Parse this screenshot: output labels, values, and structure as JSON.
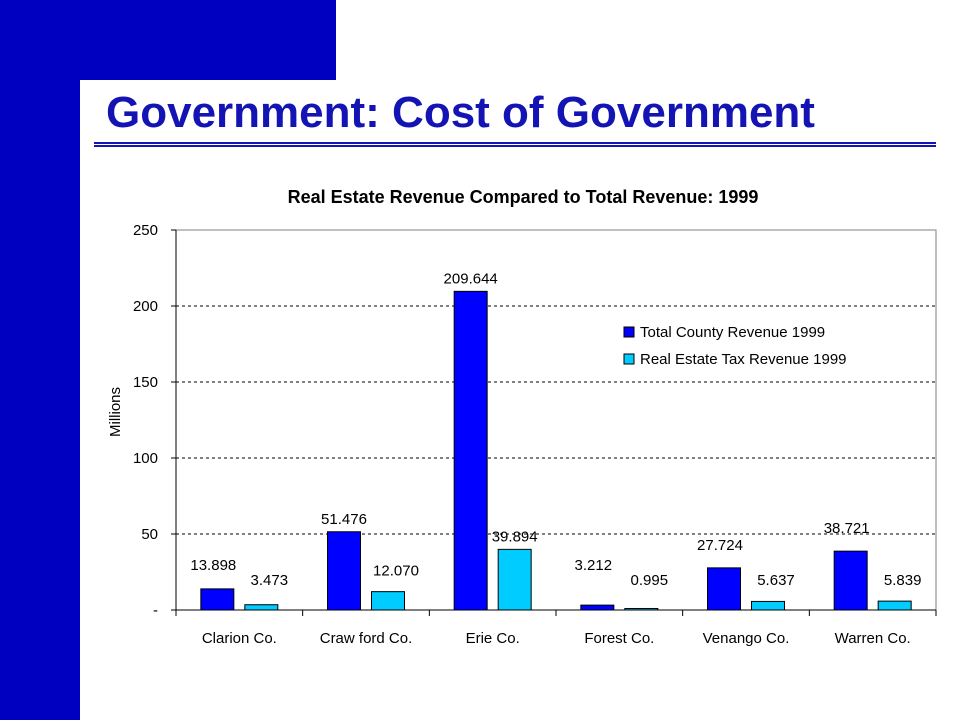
{
  "slide": {
    "title": "Government:  Cost of Government"
  },
  "colors": {
    "frame": "#0000c0",
    "title_text": "#1414b4",
    "total_series": "#0000ff",
    "real_estate_series": "#00ccff"
  },
  "chart_data": {
    "type": "bar",
    "title": "Real Estate Revenue Compared to Total Revenue: 1999",
    "xlabel": "",
    "ylabel": "Millions",
    "ylim": [
      0,
      250
    ],
    "yticks": [
      0,
      50,
      100,
      150,
      200,
      250
    ],
    "ytick_labels": [
      "-",
      "50",
      "100",
      "150",
      "200",
      "250"
    ],
    "grid": "horizontal dotted",
    "legend_position": "top-right",
    "categories": [
      "Clarion Co.",
      "Craw ford Co.",
      "Erie Co.",
      "Forest Co.",
      "Venango Co.",
      "Warren Co."
    ],
    "series": [
      {
        "name": "Total County Revenue 1999",
        "color": "#0000ff",
        "values": [
          13.898,
          51.476,
          209.644,
          3.212,
          27.724,
          38.721
        ],
        "labels": [
          "13.898",
          "51.476",
          "209.644",
          "3.212",
          "27.724",
          "38.721"
        ]
      },
      {
        "name": "Real Estate Tax Revenue 1999",
        "color": "#00ccff",
        "values": [
          3.473,
          12.07,
          39.894,
          0.995,
          5.637,
          5.839
        ],
        "labels": [
          "3.473",
          "12.070",
          "39.894",
          "0.995",
          "5.637",
          "5.839"
        ]
      }
    ]
  }
}
